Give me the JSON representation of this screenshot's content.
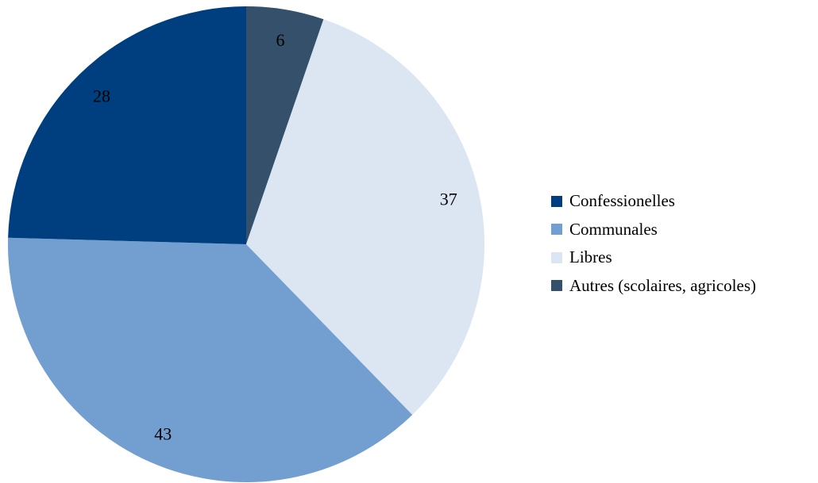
{
  "chart_data": {
    "type": "pie",
    "title": "",
    "categories": [
      "Confessionelles",
      "Communales",
      "Libres",
      "Autres (scolaires, agricoles)"
    ],
    "values": [
      28,
      43,
      37,
      6
    ],
    "colors": [
      "#003f7f",
      "#729fcf",
      "#dce6f2",
      "#34506a"
    ],
    "start_angle_deg": 0,
    "direction": "clockwise",
    "draw_order": [
      "Autres (scolaires, agricoles)",
      "Libres",
      "Communales",
      "Confessionelles"
    ],
    "data_labels": [
      "28",
      "43",
      "37",
      "6"
    ],
    "legend_position": "right"
  }
}
